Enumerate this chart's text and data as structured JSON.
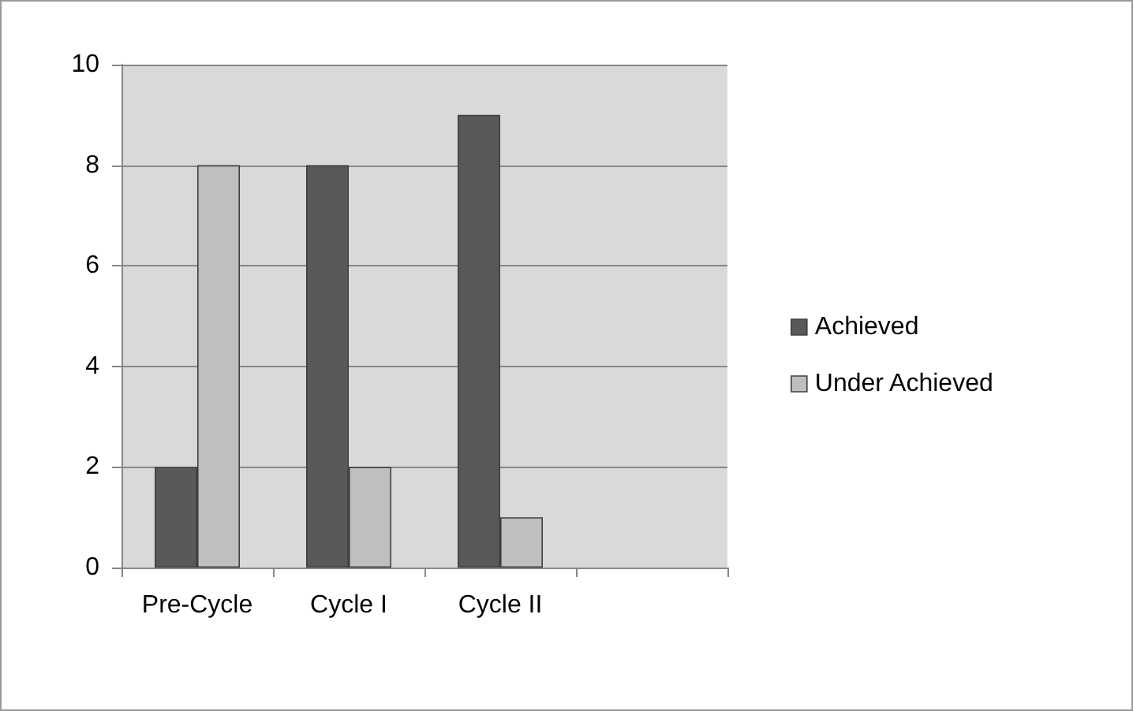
{
  "chart_data": {
    "type": "bar",
    "categories": [
      "Pre-Cycle",
      "Cycle I",
      "Cycle II",
      null
    ],
    "series": [
      {
        "name": "Achieved",
        "color": "#595959",
        "values": [
          2,
          8,
          9,
          null
        ]
      },
      {
        "name": "Under Achieved",
        "color": "#bfbfbf",
        "values": [
          8,
          2,
          1,
          null
        ]
      }
    ],
    "ylim": [
      0,
      10
    ],
    "yticks": [
      0,
      2,
      4,
      6,
      8,
      10
    ],
    "grid": "y",
    "legend": "right"
  }
}
